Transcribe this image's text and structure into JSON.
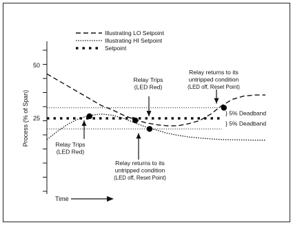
{
  "chart_data": {
    "type": "line",
    "title": "",
    "ylabel": "Process (% of Span)",
    "xlabel": "Time",
    "ylim": [
      0,
      60
    ],
    "xlim": [
      0,
      1
    ],
    "yticks": [
      50,
      25
    ],
    "grid": false,
    "legend_position": "top",
    "series": [
      {
        "name": "Illustrating LO Setpoint",
        "style": "dashed",
        "x": [
          0,
          0.05,
          0.1,
          0.15,
          0.2,
          0.25,
          0.3,
          0.35,
          0.4,
          0.45,
          0.5,
          0.55,
          0.6,
          0.65,
          0.7,
          0.75,
          0.8,
          0.85,
          0.9,
          0.95,
          1.0
        ],
        "y": [
          46,
          43,
          40,
          37,
          34,
          31,
          29,
          26.5,
          24.5,
          23,
          22,
          21.5,
          21.5,
          22.5,
          24,
          27,
          31,
          34,
          35.5,
          36,
          36
        ]
      },
      {
        "name": "Illustrating HI Setpoint",
        "style": "dotted",
        "x": [
          0,
          0.05,
          0.1,
          0.15,
          0.2,
          0.25,
          0.3,
          0.35,
          0.4,
          0.45,
          0.5,
          0.55,
          0.6,
          0.65,
          0.7,
          0.75,
          0.8,
          0.85,
          0.9,
          0.95,
          1.0
        ],
        "y": [
          15,
          19,
          22.5,
          25,
          26.5,
          27,
          26.5,
          25,
          23,
          21,
          19.5,
          18,
          17,
          16.2,
          15.7,
          15.3,
          15,
          14.9,
          14.8,
          14.7,
          14.7
        ]
      },
      {
        "name": "Setpoint",
        "style": "dots",
        "x": [
          0,
          1
        ],
        "y": [
          25,
          25
        ]
      }
    ],
    "reference_lines": [
      {
        "y": 30,
        "style": "dotted"
      },
      {
        "y": 20,
        "style": "dotted"
      }
    ],
    "events": [
      {
        "x": 0.195,
        "y": 26,
        "label_lines": [
          "Relay Trips",
          "(LED Red)"
        ]
      },
      {
        "x": 0.405,
        "y": 24,
        "label_lines": [
          "Relay Trips",
          "(LED Red)"
        ]
      },
      {
        "x": 0.47,
        "y": 20,
        "label_lines": [
          "Relay returns to its",
          "untripped condition",
          "(LED off, Reset Point)"
        ]
      },
      {
        "x": 0.81,
        "y": 30,
        "label_lines": [
          "Relay returns to its",
          "untripped condition",
          "(LED off, Reset Point)"
        ]
      }
    ],
    "annotations": [
      "} 5% Deadband",
      "} 5% Deadband"
    ]
  }
}
